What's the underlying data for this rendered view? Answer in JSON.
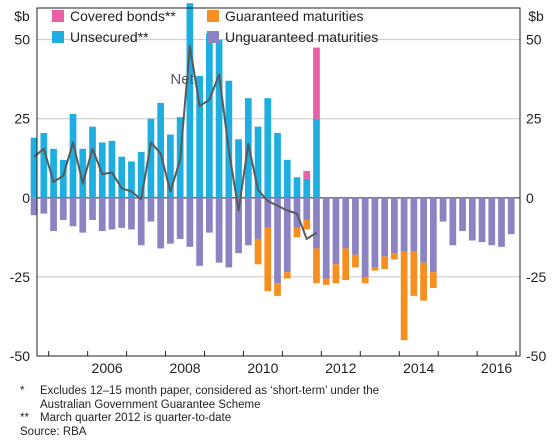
{
  "chart_data": {
    "type": "bar",
    "y_unit": "$b",
    "ylim": [
      -50,
      60
    ],
    "yticks": [
      50,
      25,
      0,
      -25,
      -50
    ],
    "ytick_labels": [
      "50",
      "25",
      "0",
      "-25",
      "-50"
    ],
    "xlim": [
      2004.7,
      2017.1
    ],
    "xticks": [
      2006,
      2008,
      2010,
      2012,
      2014,
      2016
    ],
    "xtick_labels": [
      "2006",
      "2008",
      "2010",
      "2012",
      "2014",
      "2016"
    ],
    "grid": true,
    "legend_position": "top-left",
    "series": [
      {
        "name": "Covered bonds**",
        "color": "#ea5fa6",
        "x": [
          "2011-09",
          "2011-12"
        ],
        "values": [
          2.5,
          22.5
        ]
      },
      {
        "name": "Unsecured**",
        "color": "#1eafe0",
        "x": [
          "2004-09",
          "2004-12",
          "2005-03",
          "2005-06",
          "2005-09",
          "2005-12",
          "2006-03",
          "2006-06",
          "2006-09",
          "2006-12",
          "2007-03",
          "2007-06",
          "2007-09",
          "2007-12",
          "2008-03",
          "2008-06",
          "2008-09",
          "2008-12",
          "2009-03",
          "2009-06",
          "2009-09",
          "2009-12",
          "2010-03",
          "2010-06",
          "2010-09",
          "2010-12",
          "2011-03",
          "2011-06",
          "2011-09",
          "2011-12"
        ],
        "values": [
          19,
          20.5,
          15.5,
          12,
          26.5,
          15.5,
          22.5,
          17.5,
          18,
          13,
          11.5,
          14.5,
          25,
          30,
          20,
          25.5,
          61.5,
          38.5,
          52,
          50,
          37,
          18.5,
          31.5,
          22.5,
          31.5,
          20.5,
          12,
          6.5,
          6,
          25
        ]
      },
      {
        "name": "Guaranteed maturities",
        "color": "#f58f1f",
        "x": [
          "2010-06",
          "2010-09",
          "2010-12",
          "2011-03",
          "2011-06",
          "2011-09",
          "2011-12",
          "2012-03",
          "2012-06",
          "2012-09",
          "2012-12",
          "2013-03",
          "2013-06",
          "2013-09",
          "2013-12",
          "2014-03",
          "2014-06",
          "2014-09",
          "2014-12"
        ],
        "values": [
          -8,
          -20,
          -4,
          -2,
          -3,
          -3,
          -11,
          -2,
          -6,
          -10,
          -4,
          -2,
          -1,
          -4,
          -2,
          -28,
          -14,
          -12,
          -5
        ]
      },
      {
        "name": "Unguaranteed maturities",
        "color": "#8c84c2",
        "x": [
          "2004-09",
          "2004-12",
          "2005-03",
          "2005-06",
          "2005-09",
          "2005-12",
          "2006-03",
          "2006-06",
          "2006-09",
          "2006-12",
          "2007-03",
          "2007-06",
          "2007-09",
          "2007-12",
          "2008-03",
          "2008-06",
          "2008-09",
          "2008-12",
          "2009-03",
          "2009-06",
          "2009-09",
          "2009-12",
          "2010-03",
          "2010-06",
          "2010-09",
          "2010-12",
          "2011-03",
          "2011-06",
          "2011-09",
          "2011-12",
          "2012-03",
          "2012-06",
          "2012-09",
          "2012-12",
          "2013-03",
          "2013-06",
          "2013-09",
          "2013-12",
          "2014-03",
          "2014-06",
          "2014-09",
          "2014-12",
          "2015-03",
          "2015-06",
          "2015-09",
          "2015-12",
          "2016-03",
          "2016-06",
          "2016-09",
          "2016-12"
        ],
        "values": [
          -5.5,
          -5,
          -10.5,
          -7,
          -9,
          -11,
          -7,
          -10.5,
          -10,
          -9.5,
          -10,
          -15,
          -7.5,
          -16,
          -14.5,
          -13,
          -15.5,
          -21.5,
          -11,
          -20.5,
          -22,
          -17.5,
          -15,
          -13,
          -9.5,
          -27,
          -23.5,
          -9.5,
          -7,
          -16,
          -25.5,
          -21,
          -16,
          -18,
          -25,
          -22,
          -18.5,
          -17.5,
          -17,
          -17,
          -20.5,
          -23.5,
          -7.5,
          -15,
          -10.5,
          -13.5,
          -14,
          -15,
          -15.5,
          -11.5
        ]
      },
      {
        "name": "Net",
        "type": "line",
        "color": "#58595b",
        "x": [
          "2004-09",
          "2004-12",
          "2005-03",
          "2005-06",
          "2005-09",
          "2005-12",
          "2006-03",
          "2006-06",
          "2006-09",
          "2006-12",
          "2007-03",
          "2007-06",
          "2007-09",
          "2007-12",
          "2008-03",
          "2008-06",
          "2008-09",
          "2008-12",
          "2009-03",
          "2009-06",
          "2009-09",
          "2009-12",
          "2010-03",
          "2010-06",
          "2010-09",
          "2010-12",
          "2011-03",
          "2011-06",
          "2011-09",
          "2011-12"
        ],
        "values": [
          13,
          15.5,
          5,
          7,
          17.5,
          4.5,
          15.5,
          7.5,
          8,
          3,
          2,
          -0.5,
          17.5,
          14,
          2,
          12,
          48,
          29,
          31,
          39,
          15,
          -4,
          17,
          2.5,
          -1,
          -2.5,
          -4,
          -5,
          -13,
          -11
        ]
      }
    ],
    "annotations": [
      {
        "text": "Net",
        "x": "2008-03",
        "y": 36
      }
    ]
  },
  "footnotes": [
    {
      "marker": "*",
      "lines": [
        "Excludes 12–15 month paper, considered as ‘short-term’ under the",
        "Australian Government Guarantee Scheme"
      ]
    },
    {
      "marker": "**",
      "lines": [
        "March quarter 2012 is quarter-to-date"
      ]
    }
  ],
  "source": "Source: RBA"
}
